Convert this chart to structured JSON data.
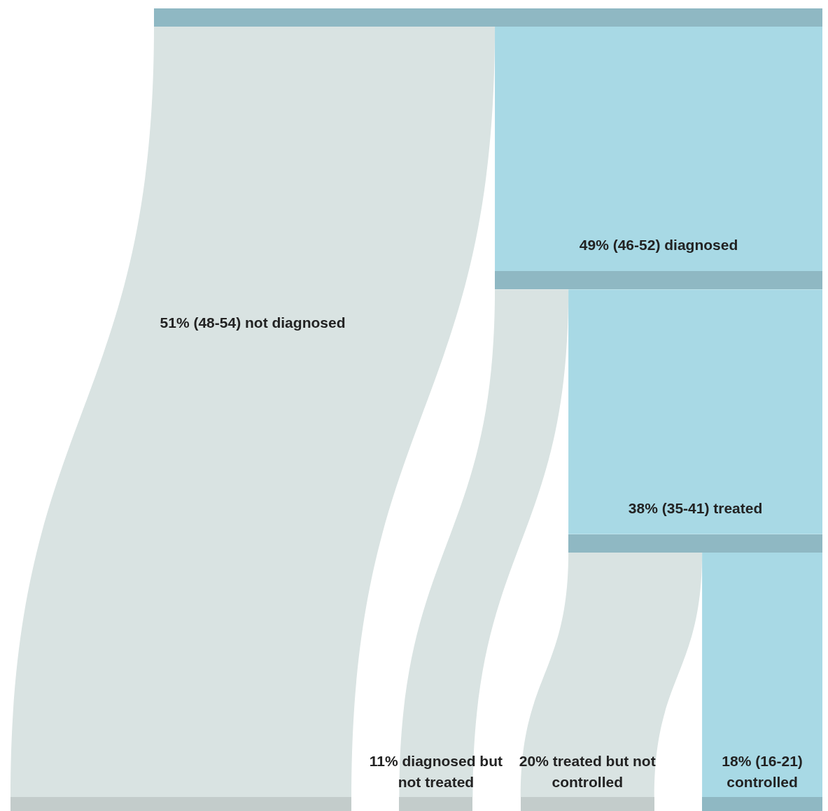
{
  "chart_data": {
    "type": "other",
    "categories": [
      "not diagnosed",
      "diagnosed",
      "diagnosed but not treated",
      "treated",
      "treated but not controlled",
      "controlled"
    ],
    "values": [
      51,
      49,
      11,
      38,
      20,
      18
    ],
    "value_labels": [
      "51% (48-54)",
      "49% (46-52)",
      "11%",
      "38% (35-41)",
      "20%",
      "18% (16-21)"
    ],
    "colors": [
      "#d9e3e2",
      "#a8d9e5",
      "#d9e3e2",
      "#a8d9e5",
      "#d9e3e2",
      "#a8d9e5"
    ]
  }
}
